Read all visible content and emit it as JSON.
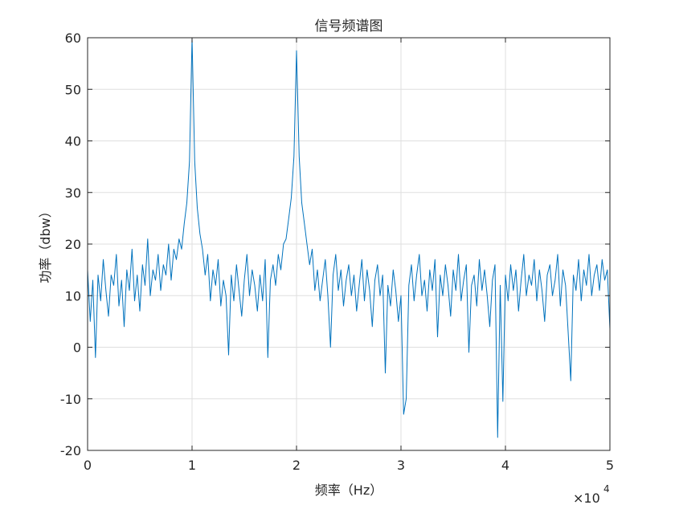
{
  "chart_data": {
    "type": "line",
    "title": "信号频谱图",
    "xlabel": "频率（Hz）",
    "ylabel": "功率（dbw）",
    "x_exponent_label": "×10",
    "x_exponent_power": "4",
    "xlim": [
      0,
      50000
    ],
    "ylim": [
      -20,
      60
    ],
    "xticks": [
      0,
      10000,
      20000,
      30000,
      40000,
      50000
    ],
    "xtick_labels": [
      "0",
      "1",
      "2",
      "3",
      "4",
      "5"
    ],
    "yticks": [
      -20,
      -10,
      0,
      10,
      20,
      30,
      40,
      50,
      60
    ],
    "ytick_labels": [
      "-20",
      "-10",
      "0",
      "10",
      "20",
      "30",
      "40",
      "50",
      "60"
    ],
    "grid": true,
    "line_color": "#0072BD",
    "x_start": 0,
    "x_step": 250,
    "y": [
      15,
      5,
      13,
      -2,
      14,
      9,
      17,
      11,
      6,
      14,
      12,
      18,
      8,
      13,
      4,
      15,
      11,
      19,
      9,
      14,
      7,
      16,
      12,
      21,
      10,
      15,
      13,
      18,
      11,
      16,
      14,
      20,
      13,
      19,
      17,
      21,
      19,
      24,
      28,
      36,
      60,
      36,
      27,
      22,
      19,
      14,
      18,
      9,
      15,
      12,
      17,
      8,
      13,
      10,
      -1.5,
      14,
      9,
      16,
      11,
      6,
      13,
      18,
      10,
      15,
      12,
      7,
      14,
      9,
      17,
      -2,
      13,
      16,
      12,
      18,
      15,
      20,
      21,
      25,
      29,
      37,
      57.5,
      37,
      28,
      24,
      20,
      16,
      19,
      11,
      15,
      9,
      13,
      17,
      10,
      0,
      14,
      18,
      11,
      15,
      8,
      13,
      16,
      10,
      14,
      7,
      12,
      17,
      9,
      15,
      11,
      4,
      13,
      16,
      10,
      14,
      -5,
      12,
      8,
      15,
      11,
      5,
      10,
      -13,
      -10,
      12,
      16,
      9,
      14,
      18,
      10,
      13,
      7,
      15,
      11,
      17,
      2,
      14,
      10,
      16,
      12,
      6,
      15,
      11,
      18,
      9,
      13,
      16,
      -1,
      12,
      14,
      8,
      17,
      11,
      15,
      10,
      4,
      13,
      16,
      -17.5,
      12,
      -10.5,
      14,
      9,
      16,
      11,
      15,
      7,
      13,
      18,
      10,
      14,
      12,
      17,
      9,
      15,
      11,
      5,
      14,
      16,
      10,
      13,
      18,
      8,
      15,
      12,
      3,
      -6.5,
      14,
      11,
      17,
      9,
      15,
      12,
      18,
      10,
      14,
      16,
      11,
      17,
      13,
      15,
      3.5
    ]
  }
}
